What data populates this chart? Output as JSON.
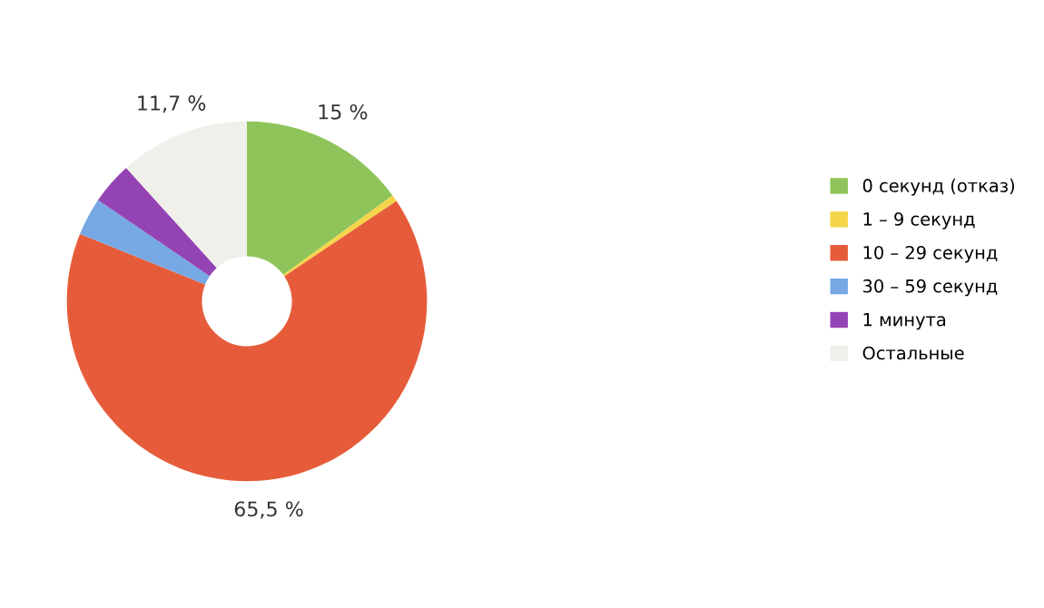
{
  "chart_data": {
    "type": "donut",
    "categories": [
      "0 секунд (отказ)",
      "1 – 9 секунд",
      "10 – 29 секунд",
      "30 – 59 секунд",
      "1 минута",
      "Остальные"
    ],
    "values": [
      15,
      0.6,
      65.5,
      3.4,
      3.8,
      11.7
    ],
    "value_labels": [
      "15 %",
      null,
      "65,5 %",
      null,
      null,
      "11,7 %"
    ],
    "colors": [
      "#8fc45a",
      "#f5d54a",
      "#e65c3a",
      "#76a9e3",
      "#9443b4",
      "#f0efea"
    ],
    "legend": "right"
  }
}
